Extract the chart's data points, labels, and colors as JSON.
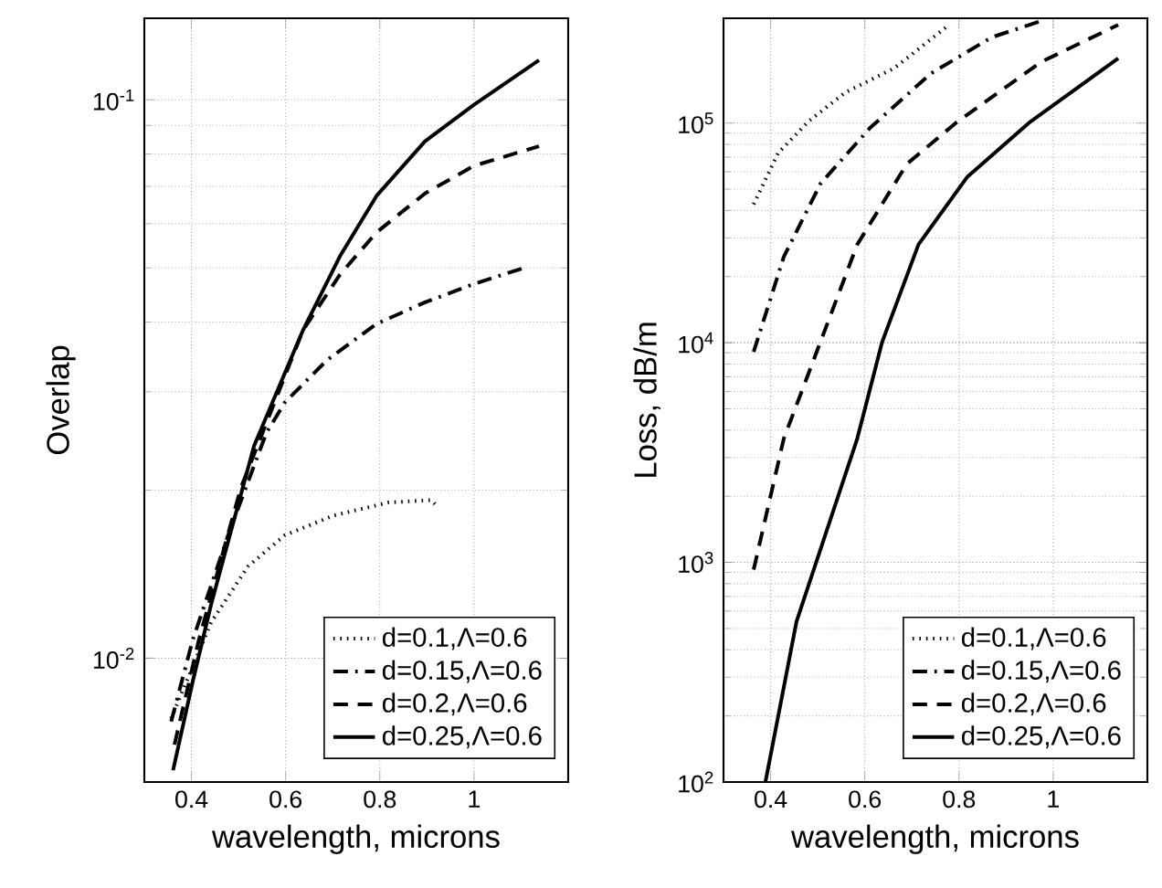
{
  "chart_data": [
    {
      "type": "line",
      "xlabel": "wavelength, microns",
      "ylabel": "Overlap",
      "log": "y",
      "grid": true,
      "legend": "bottom right",
      "xlim": [
        0.3,
        1.2
      ],
      "xticks": [
        0.4,
        0.6,
        0.8,
        1
      ],
      "ylim": [
        0.006,
        0.14
      ],
      "yticks": [
        {
          "value": 0.01,
          "label": "10$^{-2}$"
        },
        {
          "value": 0.1,
          "label": "10$^{-1}$"
        }
      ],
      "series": [
        {
          "name": "d=0.1,Λ=0.6",
          "color": "#000000",
          "line_style": "dotted",
          "x": [
            0.357,
            0.442,
            0.52,
            0.598,
            0.701,
            0.818,
            0.909,
            0.922
          ],
          "values": [
            0.0078,
            0.0116,
            0.0146,
            0.0166,
            0.018,
            0.019,
            0.0192,
            0.0187
          ]
        },
        {
          "name": "d=0.15,Λ=0.6",
          "color": "#000000",
          "line_style": "dashdot",
          "x": [
            0.357,
            0.403,
            0.481,
            0.559,
            0.598,
            0.688,
            0.793,
            0.896,
            1.0,
            1.112
          ],
          "values": [
            0.0077,
            0.0108,
            0.0169,
            0.0253,
            0.0287,
            0.0342,
            0.0397,
            0.0434,
            0.0468,
            0.0502
          ]
        },
        {
          "name": "d=0.2,Λ=0.6",
          "color": "#000000",
          "line_style": "dashed",
          "x": [
            0.364,
            0.416,
            0.505,
            0.637,
            0.715,
            0.793,
            0.896,
            1.0,
            1.138
          ],
          "values": [
            0.007,
            0.0108,
            0.0202,
            0.0387,
            0.0486,
            0.0579,
            0.068,
            0.0762,
            0.0826
          ]
        },
        {
          "name": "d=0.25,Λ=0.6",
          "color": "#000000",
          "line_style": "solid",
          "x": [
            0.361,
            0.403,
            0.442,
            0.533,
            0.637,
            0.715,
            0.793,
            0.896,
            1.0,
            1.138
          ],
          "values": [
            0.0063,
            0.0091,
            0.0125,
            0.024,
            0.0387,
            0.0524,
            0.0673,
            0.0843,
            0.098,
            0.1178
          ]
        }
      ]
    },
    {
      "type": "line",
      "xlabel": "wavelength, microns",
      "ylabel": "Loss, dB/m",
      "log": "y",
      "grid": true,
      "legend": "bottom right",
      "xlim": [
        0.3,
        1.2
      ],
      "xticks": [
        0.4,
        0.6,
        0.8,
        1
      ],
      "ylim": [
        100,
        300000
      ],
      "yticks": [
        {
          "value": 100,
          "label": "10$^{2}$"
        },
        {
          "value": 1000,
          "label": "10$^{3}$"
        },
        {
          "value": 10000,
          "label": "10$^{4}$"
        },
        {
          "value": 100000,
          "label": "10$^{5}$"
        }
      ],
      "series": [
        {
          "name": "d=0.1,Λ=0.6",
          "color": "#000000",
          "line_style": "dotted",
          "x": [
            0.364,
            0.416,
            0.481,
            0.559,
            0.663,
            0.779
          ],
          "values": [
            42700,
            73000,
            102000,
            138000,
            178000,
            280000
          ]
        },
        {
          "name": "d=0.15,Λ=0.6",
          "color": "#000000",
          "line_style": "dashdot",
          "x": [
            0.364,
            0.428,
            0.506,
            0.611,
            0.74,
            0.87,
            0.982
          ],
          "values": [
            9080,
            24600,
            53000,
            95000,
            168000,
            246000,
            295000
          ]
        },
        {
          "name": "d=0.2,Λ=0.6",
          "color": "#000000",
          "line_style": "dashed",
          "x": [
            0.364,
            0.428,
            0.506,
            0.584,
            0.689,
            0.793,
            0.975,
            1.138
          ],
          "values": [
            927,
            3660,
            10100,
            28000,
            65000,
            100000,
            190000,
            280000
          ]
        },
        {
          "name": "d=0.25,Λ=0.6",
          "color": "#000000",
          "line_style": "solid",
          "x": [
            0.389,
            0.455,
            0.584,
            0.637,
            0.714,
            0.818,
            0.948,
            1.138
          ],
          "values": [
            100,
            537,
            3660,
            10100,
            28000,
            57000,
            100000,
            197000
          ]
        }
      ]
    }
  ]
}
